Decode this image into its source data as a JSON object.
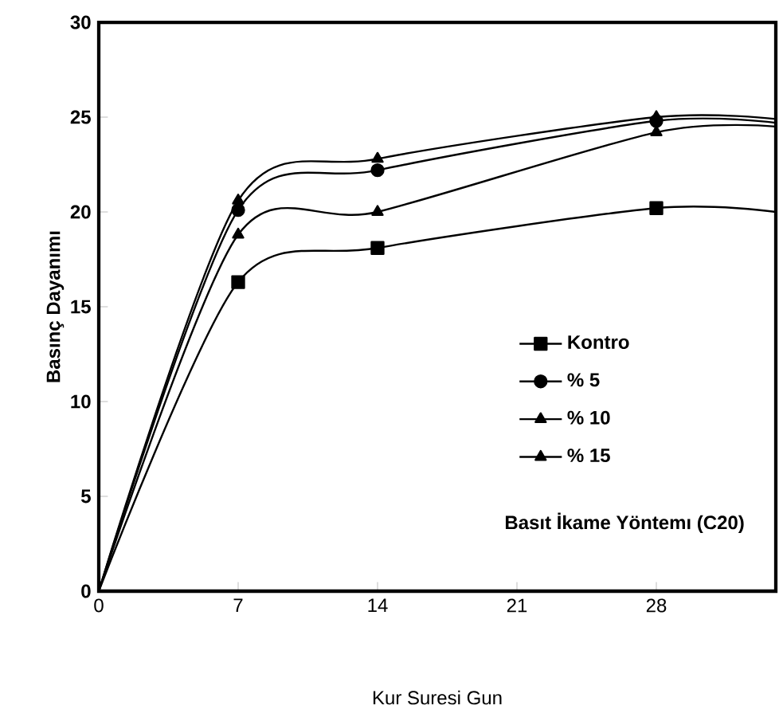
{
  "chart_data": {
    "type": "line",
    "xlabel": "Kur Suresi  Gun",
    "ylabel": "Basınç Dayanımı",
    "x": [
      0,
      7,
      14,
      28,
      34
    ],
    "xlim": [
      0,
      34
    ],
    "xticks": [
      0,
      7,
      14,
      21,
      28
    ],
    "ylim": [
      0,
      30
    ],
    "yticks": [
      0,
      5,
      10,
      15,
      20,
      25,
      30
    ],
    "grid": false,
    "legend": "right",
    "series": [
      {
        "name": "Kontro",
        "color": "#000000",
        "marker": "square",
        "values": [
          0,
          16.3,
          18.1,
          20.2,
          20.0
        ]
      },
      {
        "name": "% 5",
        "color": "#000000",
        "marker": "circle",
        "values": [
          0,
          20.1,
          22.2,
          24.8,
          24.7
        ]
      },
      {
        "name": "% 10",
        "color": "#000000",
        "marker": "triangle",
        "values": [
          0,
          20.6,
          22.8,
          25.0,
          24.9
        ]
      },
      {
        "name": "% 15",
        "color": "#000000",
        "marker": "triangle",
        "values": [
          0,
          18.8,
          20.0,
          24.2,
          24.5
        ]
      }
    ],
    "annotations": [
      "Basıt İkame Yöntemı (C20)"
    ]
  }
}
